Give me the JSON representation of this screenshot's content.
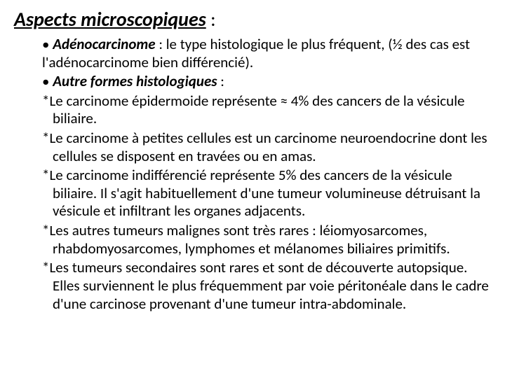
{
  "heading": {
    "text": "Aspects microscopiques",
    "colon": " :",
    "fontsize": 28,
    "fontweight": "bold",
    "fontstyle": "italic",
    "underline": true
  },
  "body_fontsize": 21,
  "text_color": "#000000",
  "background_color": "#ffffff",
  "bullet1": {
    "lead": "Adénocarcinome",
    "rest": " : le type histologique le plus fréquent, (½ des cas est l'adénocarcinome bien différencié)."
  },
  "bullet2": {
    "lead": "Autre formes histologiques",
    "rest": " :"
  },
  "star1": "*Le carcinome épidermoide représente ≈ 4% des cancers de la vésicule biliaire.",
  "star2": "*Le carcinome à petites cellules  est un carcinome neuroendocrine dont les cellules  se disposent en travées ou en amas.",
  "star3": "*Le carcinome indifférencié représente 5% des cancers de la vésicule biliaire. Il s'agit habituellement d'une tumeur volumineuse détruisant la vésicule et infiltrant les organes adjacents.",
  "star4": "*Les autres tumeurs malignes sont très rares : léiomyosarcomes, rhabdomyosarcomes, lymphomes et mélanomes biliaires primitifs.",
  "star5": "*Les tumeurs secondaires sont rares et sont de découverte autopsique. Elles surviennent le plus fréquemment par voie péritonéale dans le cadre d'une carcinose provenant d'une tumeur intra-abdominale."
}
